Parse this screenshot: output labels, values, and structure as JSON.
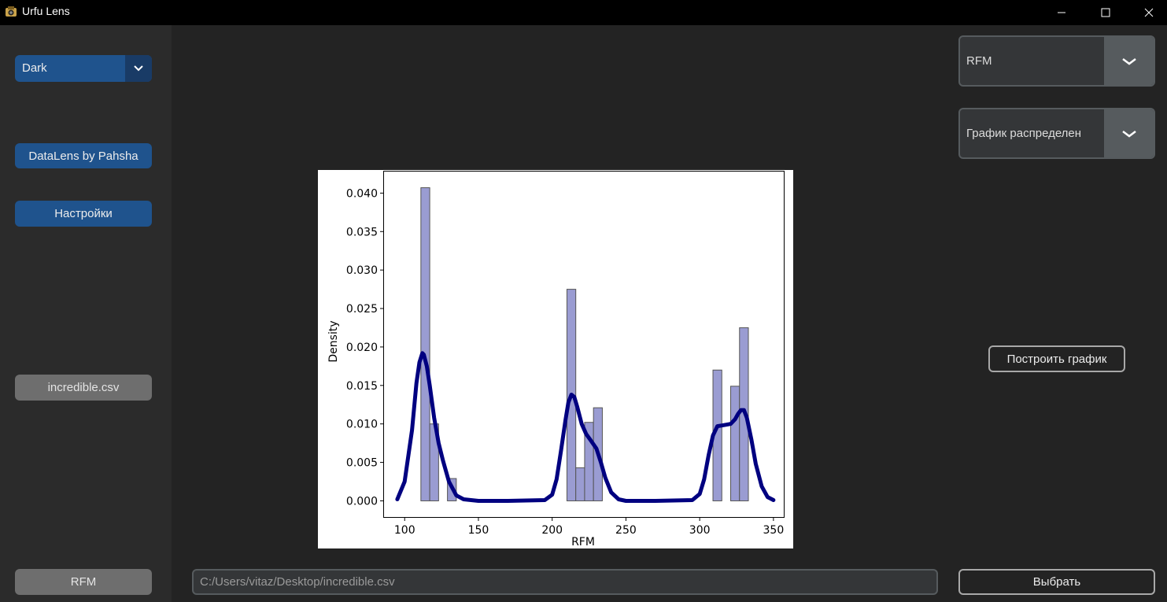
{
  "window": {
    "title": "Urfu Lens"
  },
  "sidebar": {
    "theme_value": "Dark",
    "datalens_label": "DataLens by Pahsha",
    "settings_label": "Настройки",
    "file_label": "incredible.csv",
    "column_label": "RFM"
  },
  "controls": {
    "column_select": "RFM",
    "plot_type_select": "График распределен",
    "build_label": "Построить график",
    "choose_label": "Выбрать",
    "file_path": "C:/Users/vitaz/Desktop/incredible.csv"
  },
  "colors": {
    "accent": "#1f538d",
    "bar_fill": "#9a9cd2",
    "kde_line": "#000080"
  },
  "chart_data": {
    "type": "bar",
    "xlabel": "RFM",
    "ylabel": "Density",
    "xlim": [
      86,
      357
    ],
    "ylim": [
      -0.0021,
      0.0428
    ],
    "x_ticks": [
      100,
      150,
      200,
      250,
      300,
      350
    ],
    "y_ticks": [
      0.0,
      0.005,
      0.01,
      0.015,
      0.02,
      0.025,
      0.03,
      0.035,
      0.04
    ],
    "x_tick_labels": [
      "100",
      "150",
      "200",
      "250",
      "300",
      "350"
    ],
    "y_tick_labels": [
      "0.000",
      "0.005",
      "0.010",
      "0.015",
      "0.020",
      "0.025",
      "0.030",
      "0.035",
      "0.040"
    ],
    "bins": [
      {
        "x0": 111,
        "x1": 117,
        "value": 0.0407
      },
      {
        "x0": 117,
        "x1": 123,
        "value": 0.01
      },
      {
        "x0": 123,
        "x1": 129,
        "value": 0.0
      },
      {
        "x0": 129,
        "x1": 135,
        "value": 0.0029
      },
      {
        "x0": 210,
        "x1": 216,
        "value": 0.0275
      },
      {
        "x0": 216,
        "x1": 222,
        "value": 0.0043
      },
      {
        "x0": 222,
        "x1": 228,
        "value": 0.0102
      },
      {
        "x0": 228,
        "x1": 234,
        "value": 0.0121
      },
      {
        "x0": 309,
        "x1": 315,
        "value": 0.017
      },
      {
        "x0": 315,
        "x1": 321,
        "value": 0.0
      },
      {
        "x0": 321,
        "x1": 327,
        "value": 0.0149
      },
      {
        "x0": 327,
        "x1": 333,
        "value": 0.0225
      }
    ],
    "kde": {
      "x": [
        95,
        100,
        105,
        108,
        110,
        112,
        113,
        115,
        117,
        120,
        123,
        126,
        130,
        135,
        140,
        150,
        170,
        195,
        200,
        203,
        206,
        209,
        211,
        213,
        215,
        217,
        220,
        223,
        226,
        230,
        233,
        236,
        240,
        245,
        250,
        270,
        295,
        300,
        303,
        306,
        309,
        312,
        315,
        318,
        321,
        324,
        326,
        328,
        330,
        332,
        335,
        338,
        342,
        346,
        350
      ],
      "y": [
        0.0002,
        0.0025,
        0.0092,
        0.0153,
        0.018,
        0.0192,
        0.019,
        0.0175,
        0.015,
        0.0108,
        0.0075,
        0.0052,
        0.0025,
        0.0007,
        0.0002,
        0.0,
        0.0,
        0.0001,
        0.0008,
        0.0028,
        0.0065,
        0.0105,
        0.0128,
        0.0138,
        0.0135,
        0.0122,
        0.01,
        0.0087,
        0.0079,
        0.0068,
        0.005,
        0.003,
        0.0011,
        0.0002,
        0.0,
        0.0,
        0.0001,
        0.0009,
        0.0028,
        0.0059,
        0.0085,
        0.0097,
        0.0098,
        0.0099,
        0.01,
        0.0106,
        0.0113,
        0.0118,
        0.0118,
        0.0108,
        0.008,
        0.0048,
        0.0019,
        0.0005,
        0.0001
      ]
    },
    "grid": false,
    "legend": "none"
  }
}
